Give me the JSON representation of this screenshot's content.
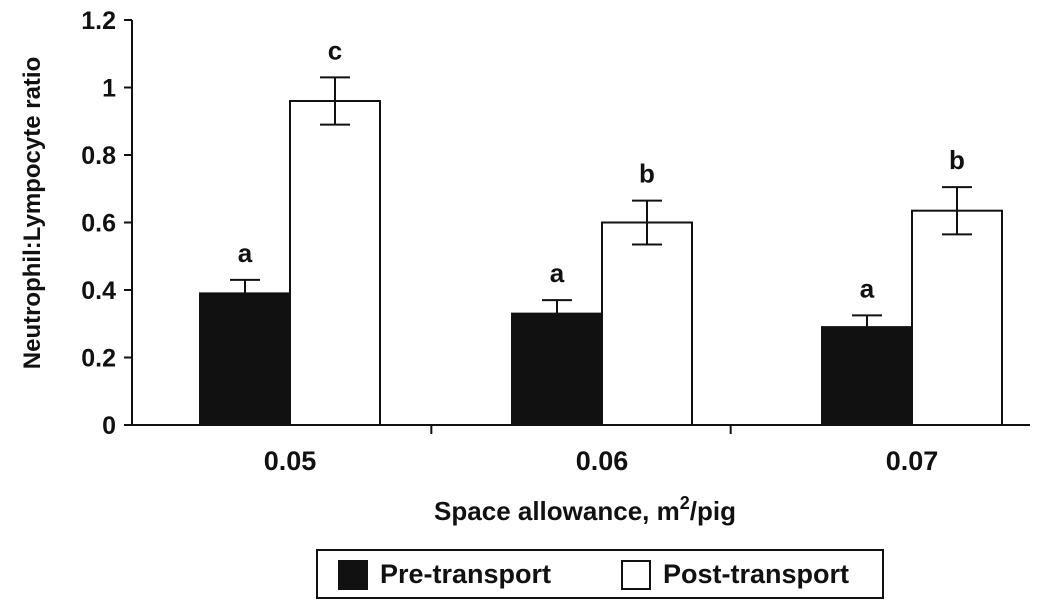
{
  "chart_data": {
    "type": "bar",
    "categories": [
      "0.05",
      "0.06",
      "0.07"
    ],
    "series": [
      {
        "name": "Pre-transport",
        "values": [
          0.39,
          0.33,
          0.29
        ],
        "errors": [
          0.04,
          0.04,
          0.035
        ],
        "letters": [
          "a",
          "a",
          "a"
        ],
        "color": "#111111"
      },
      {
        "name": "Post-transport",
        "values": [
          0.96,
          0.6,
          0.635
        ],
        "errors": [
          0.07,
          0.065,
          0.07
        ],
        "letters": [
          "c",
          "b",
          "b"
        ],
        "color": "#ffffff"
      }
    ],
    "ylabel": "Neutrophil:Lympocyte ratio",
    "xlabel": {
      "text": "Space allowance, m",
      "sup": "2",
      "suffix": "/pig"
    },
    "ylim": [
      0,
      1.2
    ],
    "yticks": [
      "0",
      "0.2",
      "0.4",
      "0.6",
      "0.8",
      "1",
      "1.2"
    ],
    "legend_position": "bottom",
    "grid": false
  }
}
